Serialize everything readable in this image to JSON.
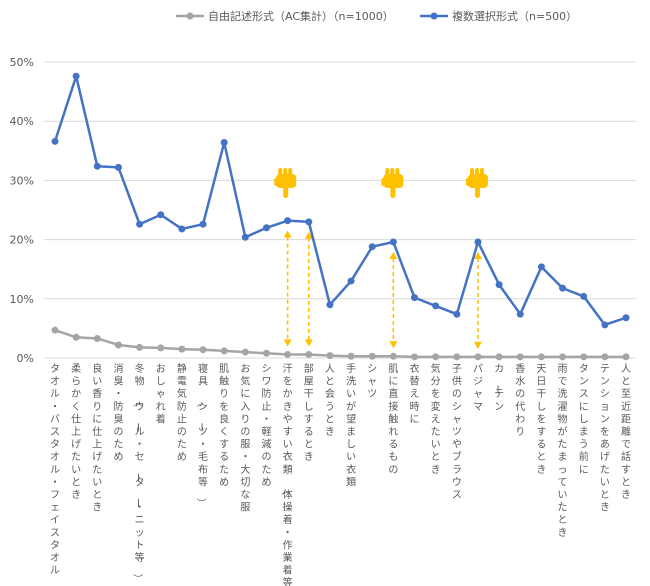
{
  "chart_data": {
    "type": "line",
    "title": "",
    "xlabel": "",
    "ylabel": "",
    "ylim": [
      0,
      50
    ],
    "y_ticks": [
      "0%",
      "10%",
      "20%",
      "30%",
      "40%",
      "50%"
    ],
    "grid": "horizontal",
    "legend_position": "top",
    "categories": [
      "タオル・バスタオル・フェイスタオル",
      "柔らかく仕上げたいとき",
      "良い香りに仕上げたいとき",
      "消臭・防臭のため",
      "冬物（ウール・セーター・ニット等）",
      "おしゃれ着",
      "静電気防止のため",
      "寝具（シーツ・毛布等）",
      "肌触りを良くするため",
      "お気に入りの服・大切な服",
      "シワ防止・軽減のため",
      "汗をかきやすい衣類（体操着・作業着等）",
      "部屋干しするとき",
      "人と会うとき",
      "手洗いが望ましい衣類",
      "シャツ",
      "肌に直接触れるもの",
      "衣替え時に",
      "気分を変えたいとき",
      "子供のシャツやブラウス",
      "パジャマ",
      "カーテン",
      "香水の代わり",
      "天日干しをするとき",
      "雨で洗濯物がたまっていたとき",
      "タンスにしまう前に",
      "テンションをあげたいとき",
      "人と至近距離で話すとき"
    ],
    "series": [
      {
        "name": "自由記述形式（AC集計）（n=1000）",
        "color": "#a5a5a5",
        "values": [
          4.7,
          3.5,
          3.3,
          2.2,
          1.8,
          1.7,
          1.5,
          1.4,
          1.2,
          1.0,
          0.8,
          0.6,
          0.6,
          0.4,
          0.3,
          0.3,
          0.3,
          0.2,
          0.2,
          0.2,
          0.2,
          0.2,
          0.2,
          0.2,
          0.2,
          0.2,
          0.2,
          0.2
        ]
      },
      {
        "name": "複数選択形式（n=500）",
        "color": "#4472c4",
        "values": [
          36.6,
          47.6,
          32.4,
          32.2,
          22.6,
          24.2,
          21.8,
          22.6,
          36.4,
          20.4,
          22.0,
          23.2,
          23.0,
          9.0,
          13.0,
          18.8,
          19.6,
          10.2,
          8.8,
          7.4,
          19.6,
          12.4,
          7.4,
          15.4,
          11.8,
          10.4,
          5.6,
          6.8
        ]
      }
    ],
    "annotations": {
      "arrow_color": "#ffc000",
      "hand_icon": "pointing-down-hand-icon",
      "hand_color": "#ffc000",
      "dashed_arrow_categories": [
        11,
        12,
        16,
        20
      ],
      "hand_categories": [
        11,
        16,
        20
      ]
    }
  }
}
